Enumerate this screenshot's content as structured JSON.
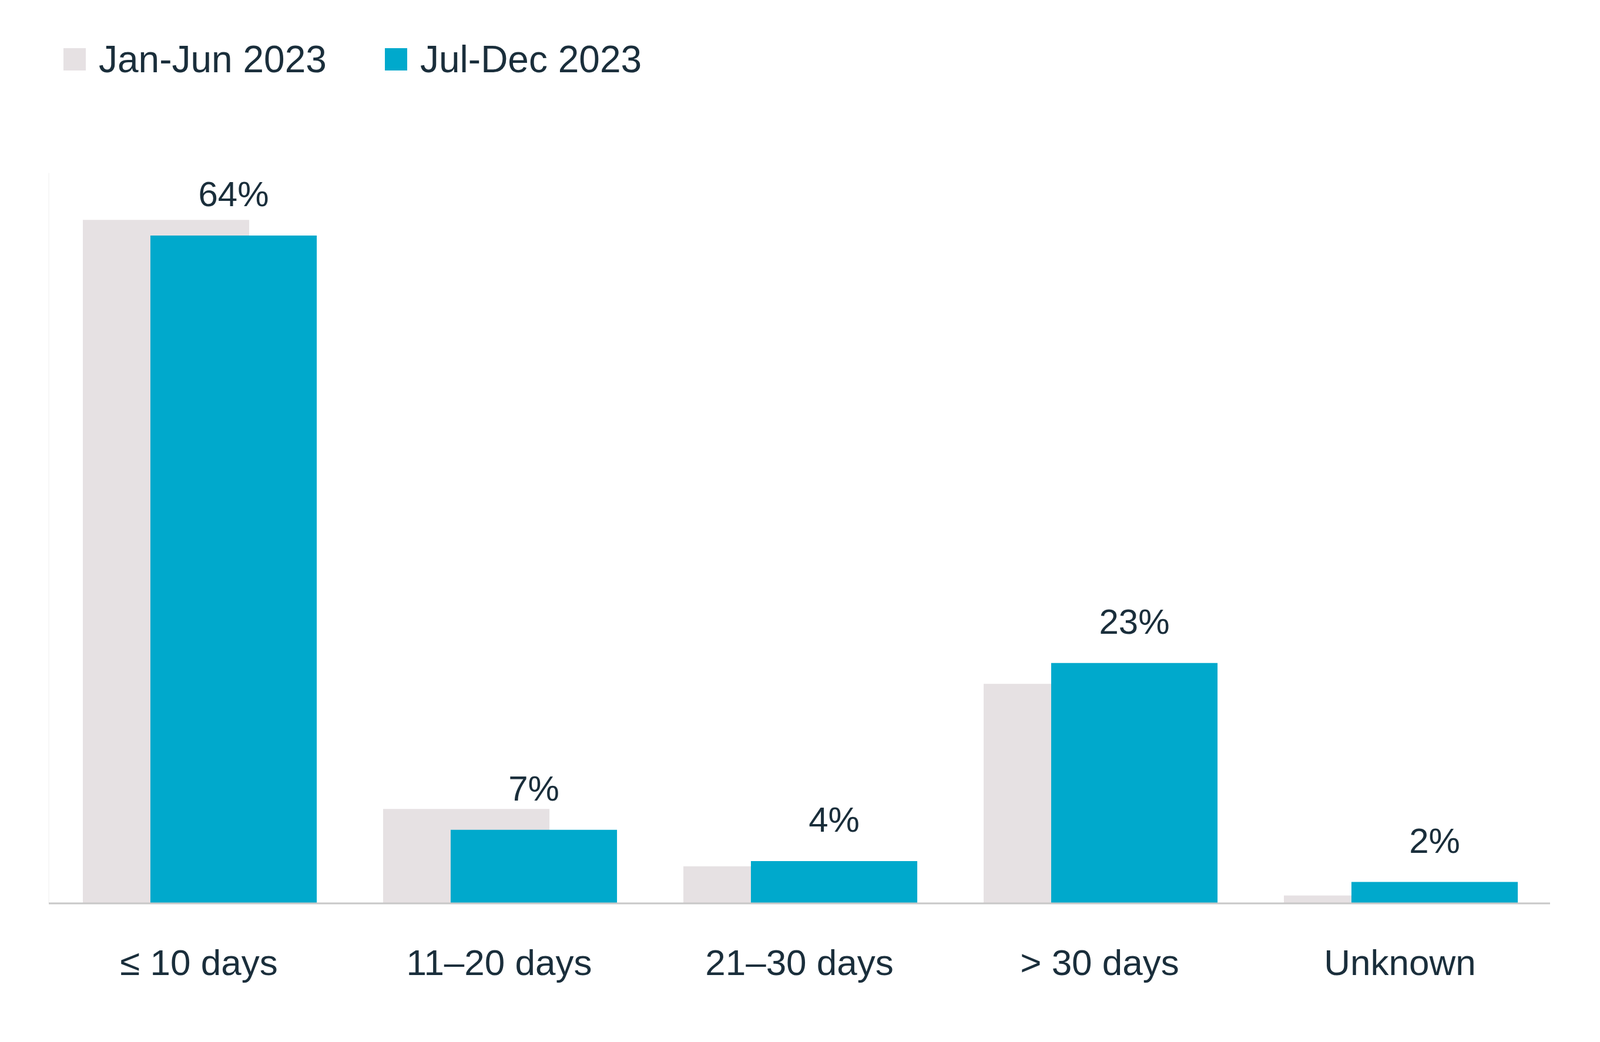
{
  "chart_data": {
    "type": "bar",
    "categories": [
      "≤ 10 days",
      "11–20 days",
      "21–30 days",
      "> 30 days",
      "Unknown"
    ],
    "series": [
      {
        "name": "Jan-Jun 2023",
        "color": "#e6e1e3",
        "values": [
          65.5,
          9,
          3.5,
          21,
          0.7
        ]
      },
      {
        "name": "Jul-Dec 2023",
        "color": "#00a9cc",
        "values": [
          64,
          7,
          4,
          23,
          2
        ],
        "value_labels": [
          "64%",
          "7%",
          "4%",
          "23%",
          "2%"
        ]
      }
    ],
    "ylim": [
      0,
      70
    ],
    "legend": "top-left",
    "data_labels": true,
    "tick_labels": "x",
    "grid": false
  }
}
